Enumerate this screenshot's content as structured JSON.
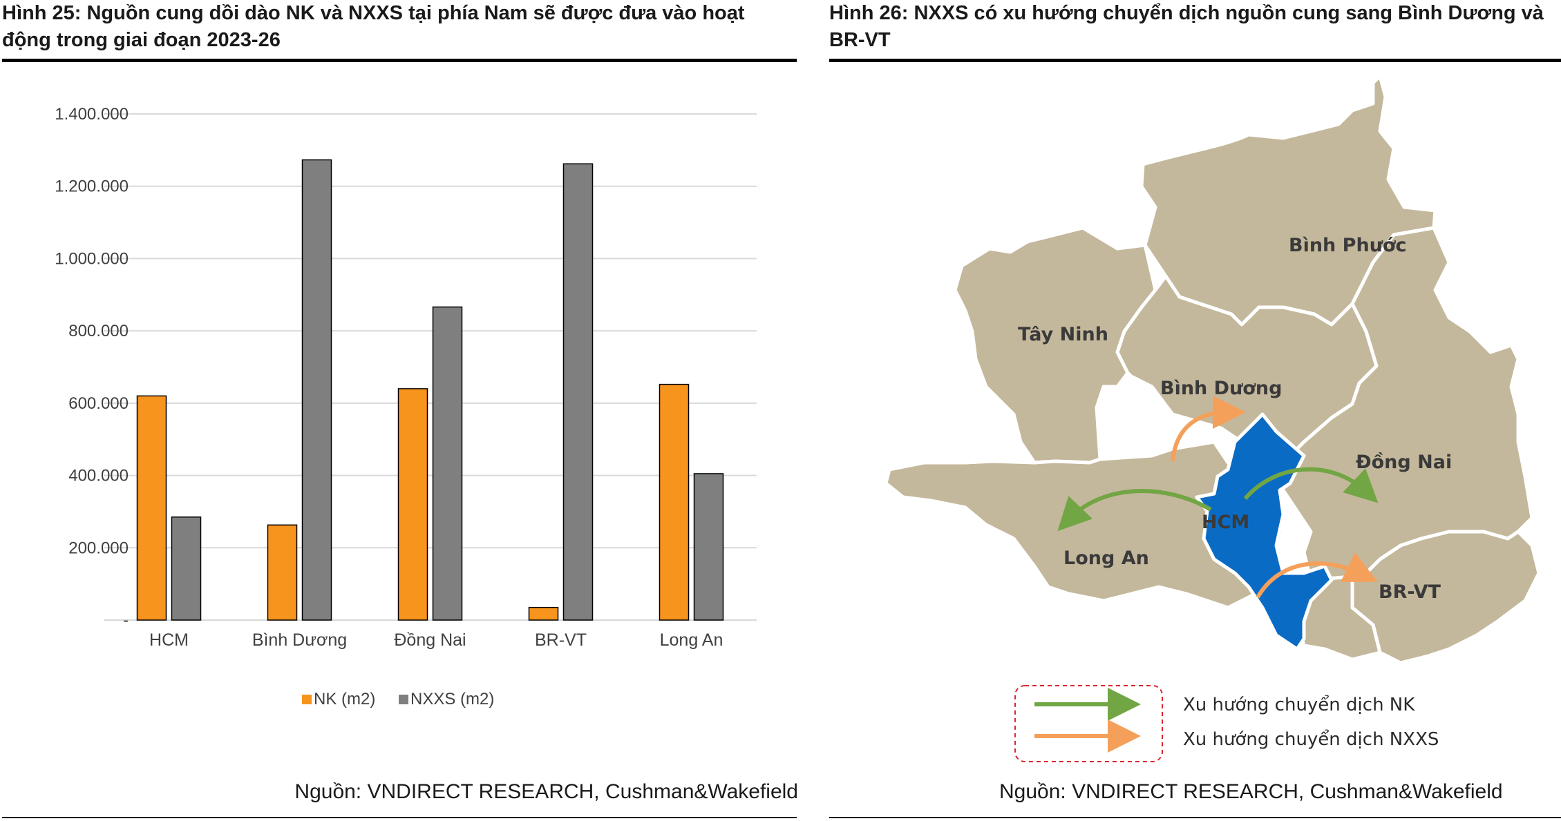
{
  "left": {
    "title": "Hình 25: Nguồn cung dồi dào NK và NXXS tại phía Nam sẽ được đưa vào hoạt động trong giai đoạn 2023-26",
    "source": "Nguồn: VNDIRECT RESEARCH, Cushman&Wakefield"
  },
  "right": {
    "title": "Hình 26: NXXS có xu hướng chuyển dịch nguồn cung sang Bình Dương và BR-VT",
    "source": "Nguồn: VNDIRECT RESEARCH, Cushman&Wakefield",
    "regions": {
      "binh_phuoc": "Bình Phước",
      "tay_ninh": "Tây Ninh",
      "binh_duong": "Bình Dương",
      "dong_nai": "Đồng Nai",
      "hcm": "HCM",
      "long_an": "Long An",
      "brvt": "BR-VT"
    },
    "legend": {
      "nk": "Xu hướng chuyển dịch NK",
      "nxxs": "Xu hướng chuyển dịch NXXS"
    },
    "colors": {
      "land": "#c4b89c",
      "hcm": "#0a6bc4",
      "nk_arrow": "#72a544",
      "nxxs_arrow": "#f5a05a",
      "legend_border": "#d9262e"
    }
  },
  "chart_data": {
    "type": "bar",
    "categories": [
      "HCM",
      "Bình Dương",
      "Đồng Nai",
      "BR-VT",
      "Long An"
    ],
    "series": [
      {
        "name": "NK (m2)",
        "color": "#f7941d",
        "values": [
          620000,
          263000,
          640000,
          35000,
          652000
        ]
      },
      {
        "name": "NXXS (m2)",
        "color": "#7f7f7f",
        "values": [
          285000,
          1273000,
          866000,
          1262000,
          405000
        ]
      }
    ],
    "ylim": [
      0,
      1400000
    ],
    "yticks": [
      0,
      200000,
      400000,
      600000,
      800000,
      1000000,
      1200000,
      1400000
    ],
    "ytick_labels": [
      "-",
      "200.000",
      "400.000",
      "600.000",
      "800.000",
      "1.000.000",
      "1.200.000",
      "1.400.000"
    ],
    "grid": true,
    "legend_position": "bottom"
  }
}
